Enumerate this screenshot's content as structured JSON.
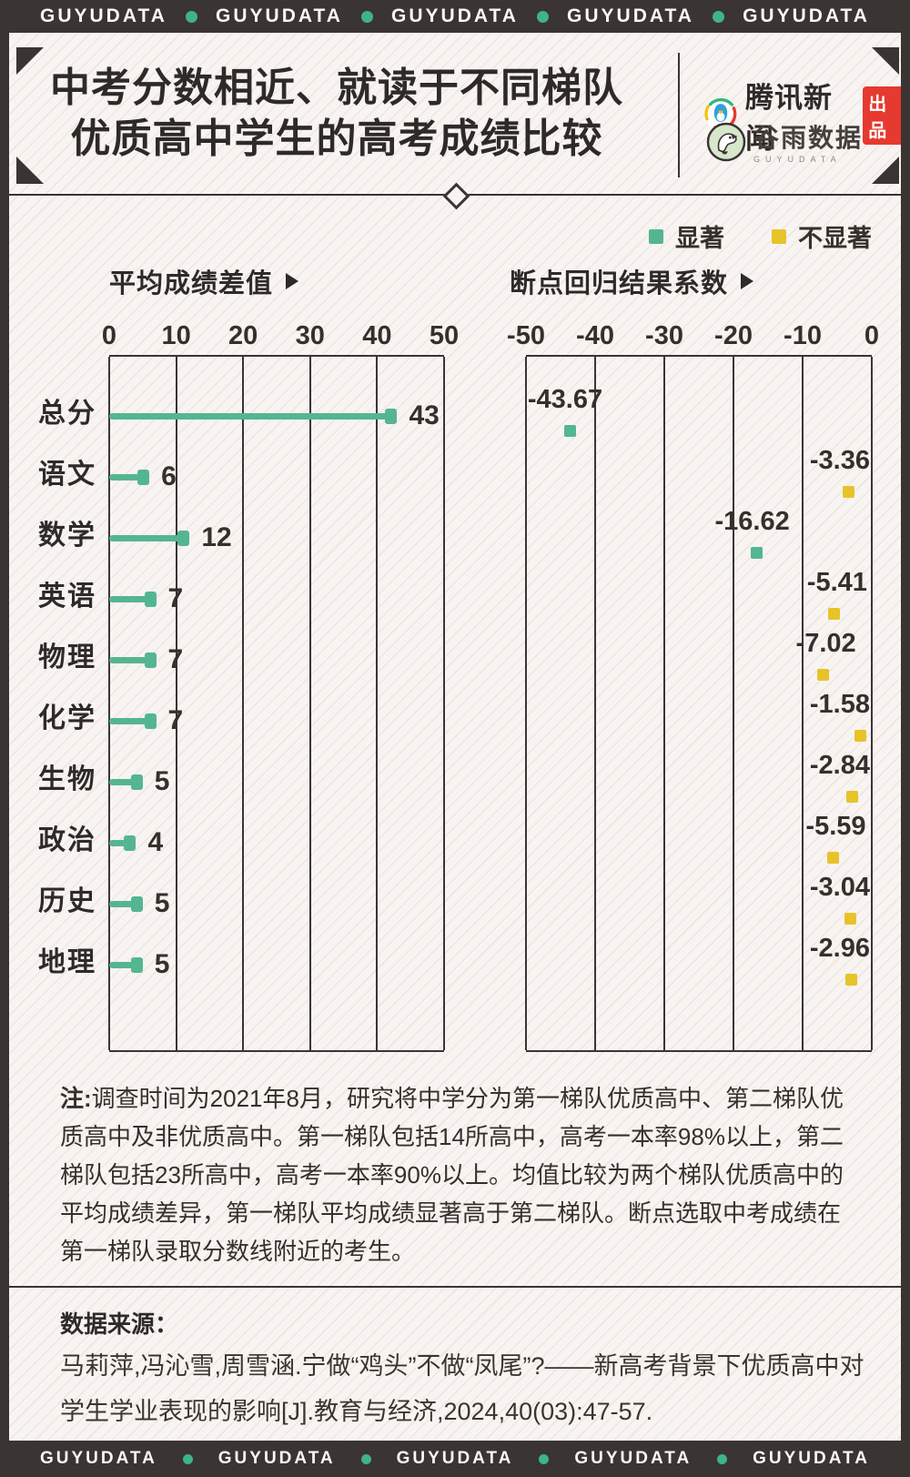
{
  "banner": {
    "brand": "GUYUDATA",
    "count": 5,
    "dot_color": "#3fb389"
  },
  "header": {
    "title_line1": "中考分数相近、就读于不同梯队",
    "title_line2": "优质高中学生的高考成绩比较",
    "tencent": {
      "name": "腾讯新闻",
      "badge": "出品",
      "badge_color": "#e6392f"
    },
    "guyu": {
      "name": "谷雨数据",
      "latin": "GUYUDATA"
    }
  },
  "legend": {
    "items": [
      {
        "label": "显著",
        "color": "#54b690"
      },
      {
        "label": "不显著",
        "color": "#e7c32a"
      }
    ]
  },
  "chart_data": {
    "type": "bar",
    "categories": [
      "总分",
      "语文",
      "数学",
      "英语",
      "物理",
      "化学",
      "生物",
      "政治",
      "历史",
      "地理"
    ],
    "series": [
      {
        "name": "平均成绩差值",
        "style": "lollipop-bar",
        "color": "#54b690",
        "xlim": [
          0,
          50
        ],
        "ticks": [
          "0",
          "10",
          "20",
          "30",
          "40",
          "50"
        ],
        "values": [
          43,
          6,
          12,
          7,
          7,
          7,
          5,
          4,
          5,
          5
        ]
      },
      {
        "name": "断点回归结果系数",
        "style": "square-scatter",
        "xlim": [
          -50,
          0
        ],
        "ticks": [
          "-50",
          "-40",
          "-30",
          "-20",
          "-10",
          "0"
        ],
        "values": [
          -43.67,
          -3.36,
          -16.62,
          -5.41,
          -7.02,
          -1.58,
          -2.84,
          -5.59,
          -3.04,
          -2.96
        ],
        "value_labels": [
          "-43.67",
          "-3.36",
          "-16.62",
          "-5.41",
          "-7.02",
          "-1.58",
          "-2.84",
          "-5.59",
          "-3.04",
          "-2.96"
        ],
        "significant": [
          true,
          false,
          true,
          false,
          false,
          false,
          false,
          false,
          false,
          false
        ],
        "significant_color": "#54b690",
        "not_significant_color": "#e7c32a"
      }
    ],
    "legend_entries": [
      "显著",
      "不显著"
    ],
    "grid": true,
    "legend_position": "top-right"
  },
  "note": {
    "prefix": "注:",
    "text": "调查时间为2021年8月，研究将中学分为第一梯队优质高中、第二梯队优质高中及非优质高中。第一梯队包括14所高中，高考一本率98%以上，第二梯队包括23所高中，高考一本率90%以上。均值比较为两个梯队优质高中的平均成绩差异，第一梯队平均成绩显著高于第二梯队。断点选取中考成绩在第一梯队录取分数线附近的考生。"
  },
  "source": {
    "label": "数据来源：",
    "text": "马莉萍,冯沁雪,周雪涵.宁做“鸡头”不做“凤尾”?——新高考背景下优质高中对学生学业表现的影响[J].教育与经济,2024,40(03):47-57."
  }
}
